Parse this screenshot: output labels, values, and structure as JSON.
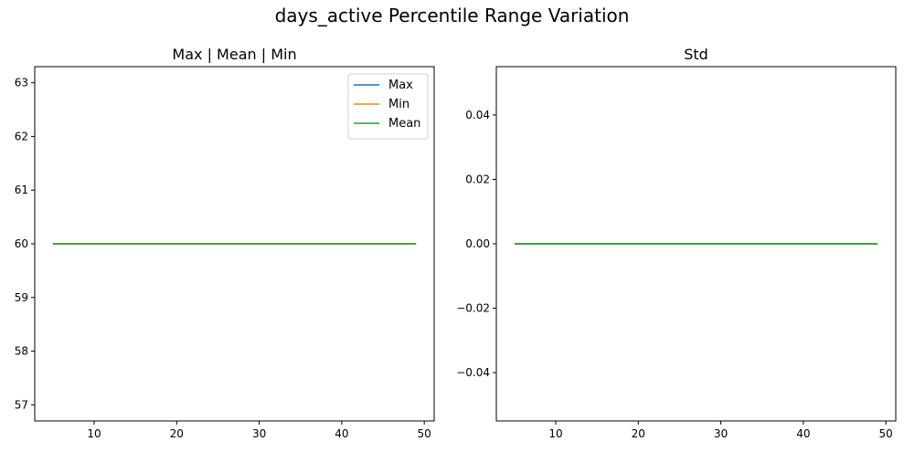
{
  "figure": {
    "suptitle": "days_active Percentile Range Variation"
  },
  "chart_data": [
    {
      "type": "line",
      "title": "Max | Mean | Min",
      "xlabel": "",
      "ylabel": "",
      "x": [
        5,
        49
      ],
      "xlim": [
        2.8,
        51.2
      ],
      "ylim": [
        56.7,
        63.3
      ],
      "xticks": [
        10,
        20,
        30,
        40,
        50
      ],
      "yticks": [
        57,
        58,
        59,
        60,
        61,
        62,
        63
      ],
      "grid": false,
      "legend": "top-right",
      "series": [
        {
          "name": "Max",
          "values": [
            60,
            60
          ],
          "color": "#1f77b4"
        },
        {
          "name": "Min",
          "values": [
            60,
            60
          ],
          "color": "#ff7f0e"
        },
        {
          "name": "Mean",
          "values": [
            60,
            60
          ],
          "color": "#2ca02c"
        }
      ]
    },
    {
      "type": "line",
      "title": "Std",
      "xlabel": "",
      "ylabel": "",
      "x": [
        5,
        49
      ],
      "xlim": [
        2.8,
        51.2
      ],
      "ylim": [
        -0.055,
        0.055
      ],
      "xticks": [
        10,
        20,
        30,
        40,
        50
      ],
      "yticks": [
        -0.04,
        -0.02,
        0.0,
        0.02,
        0.04
      ],
      "ytick_labels": [
        "−0.04",
        "−0.02",
        "0.00",
        "0.02",
        "0.04"
      ],
      "grid": false,
      "series": [
        {
          "values": [
            0,
            0
          ],
          "color": "#008000"
        }
      ]
    }
  ]
}
